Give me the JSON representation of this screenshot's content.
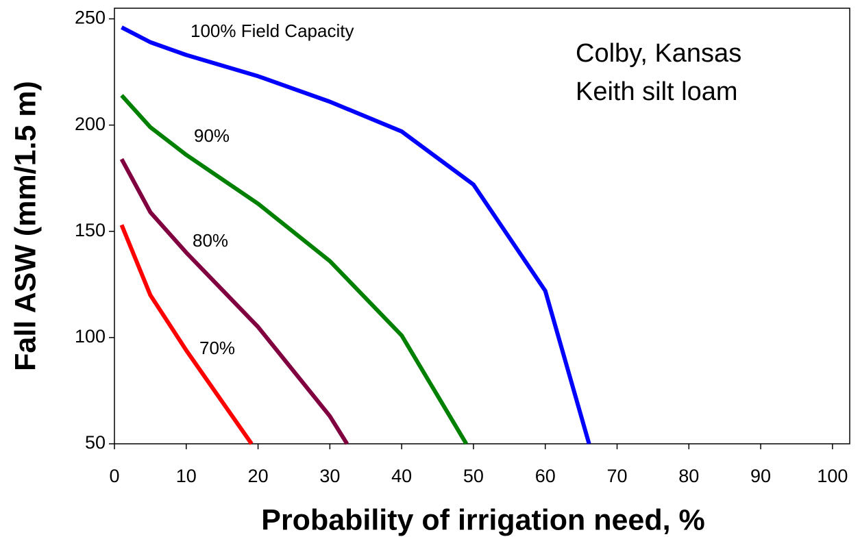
{
  "chart_data": {
    "type": "line",
    "xlabel": "Probability of irrigation need, %",
    "ylabel": "Fall ASW (mm/1.5 m)",
    "annotations": [
      "Colby, Kansas",
      "Keith silt loam"
    ],
    "xlim": [
      0,
      102.4
    ],
    "ylim": [
      50,
      255
    ],
    "xticks": [
      0,
      10,
      20,
      30,
      40,
      50,
      60,
      70,
      80,
      90,
      100
    ],
    "yticks": [
      50,
      100,
      150,
      200,
      250
    ],
    "grid": false,
    "series": [
      {
        "name": "100% Field Capacity",
        "color": "#0000ff",
        "x": [
          1,
          5,
          10,
          20,
          30,
          40,
          50,
          60,
          66.1
        ],
        "values": [
          246,
          239,
          233,
          223,
          211,
          197,
          172,
          122,
          50
        ]
      },
      {
        "name": "90%",
        "color": "#008000",
        "x": [
          1,
          5,
          10,
          20,
          30,
          40,
          49
        ],
        "values": [
          214,
          199,
          186,
          163,
          136,
          101,
          50
        ]
      },
      {
        "name": "80%",
        "color": "#800040",
        "x": [
          1,
          5,
          10,
          20,
          30,
          32.4
        ],
        "values": [
          184,
          159,
          140,
          105,
          63,
          50
        ]
      },
      {
        "name": "70%",
        "color": "#ff0000",
        "x": [
          1,
          5,
          10,
          19.1
        ],
        "values": [
          153,
          120,
          94,
          50
        ]
      }
    ]
  }
}
